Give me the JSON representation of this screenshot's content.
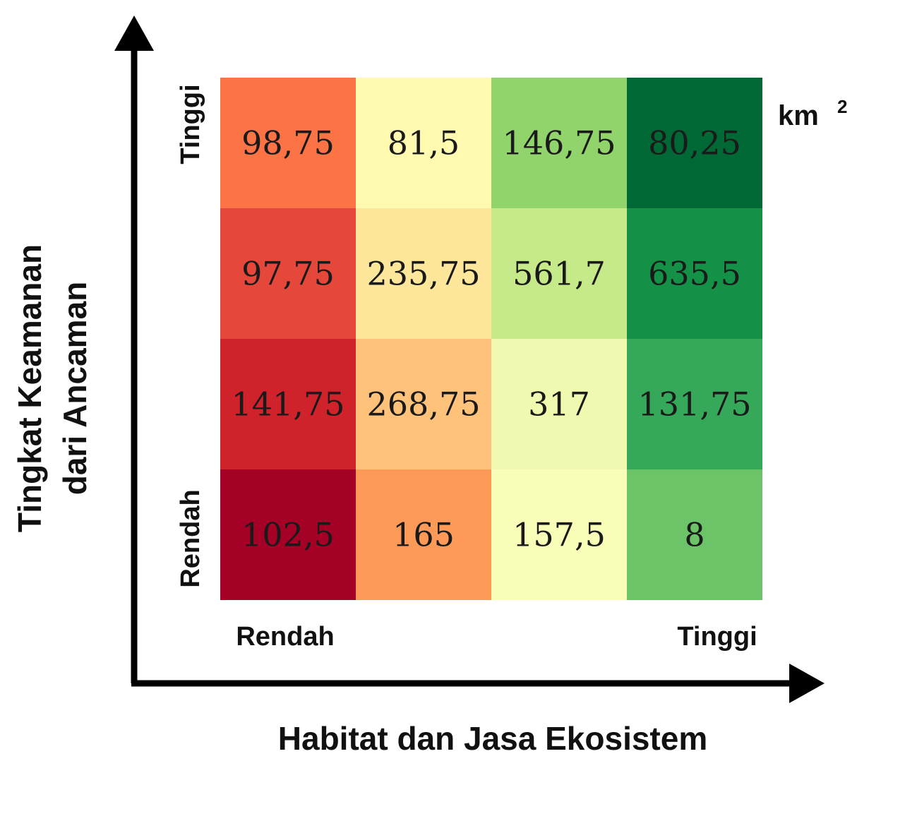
{
  "chart_data": {
    "type": "heatmap",
    "title": "",
    "xlabel": "Habitat dan Jasa Ekosistem",
    "ylabel_lines": [
      "Tingkat Keamanan",
      "dari Ancaman"
    ],
    "unit": "km",
    "unit_superscript": "2",
    "x_ticks": {
      "low": "Rendah",
      "high": "Tinggi"
    },
    "y_ticks": {
      "low": "Rendah",
      "high": "Tinggi"
    },
    "rows_top_to_bottom": [
      {
        "labels": [
          "98,75",
          "81,5",
          "146,75",
          "80,25"
        ],
        "colors": [
          "#fc7346",
          "#fffab0",
          "#91d46c",
          "#006834"
        ]
      },
      {
        "labels": [
          "97,75",
          "235,75",
          "561,7",
          "635,5"
        ],
        "colors": [
          "#e5473b",
          "#fee79a",
          "#c6e98a",
          "#149147"
        ]
      },
      {
        "labels": [
          "141,75",
          "268,75",
          "317",
          "131,75"
        ],
        "colors": [
          "#cf222b",
          "#fec27b",
          "#f1f9b0",
          "#36a85a"
        ]
      },
      {
        "labels": [
          "102,5",
          "165",
          "157,5",
          "8"
        ],
        "colors": [
          "#a50026",
          "#fd9a58",
          "#f8fdb8",
          "#6dc468"
        ]
      }
    ]
  }
}
